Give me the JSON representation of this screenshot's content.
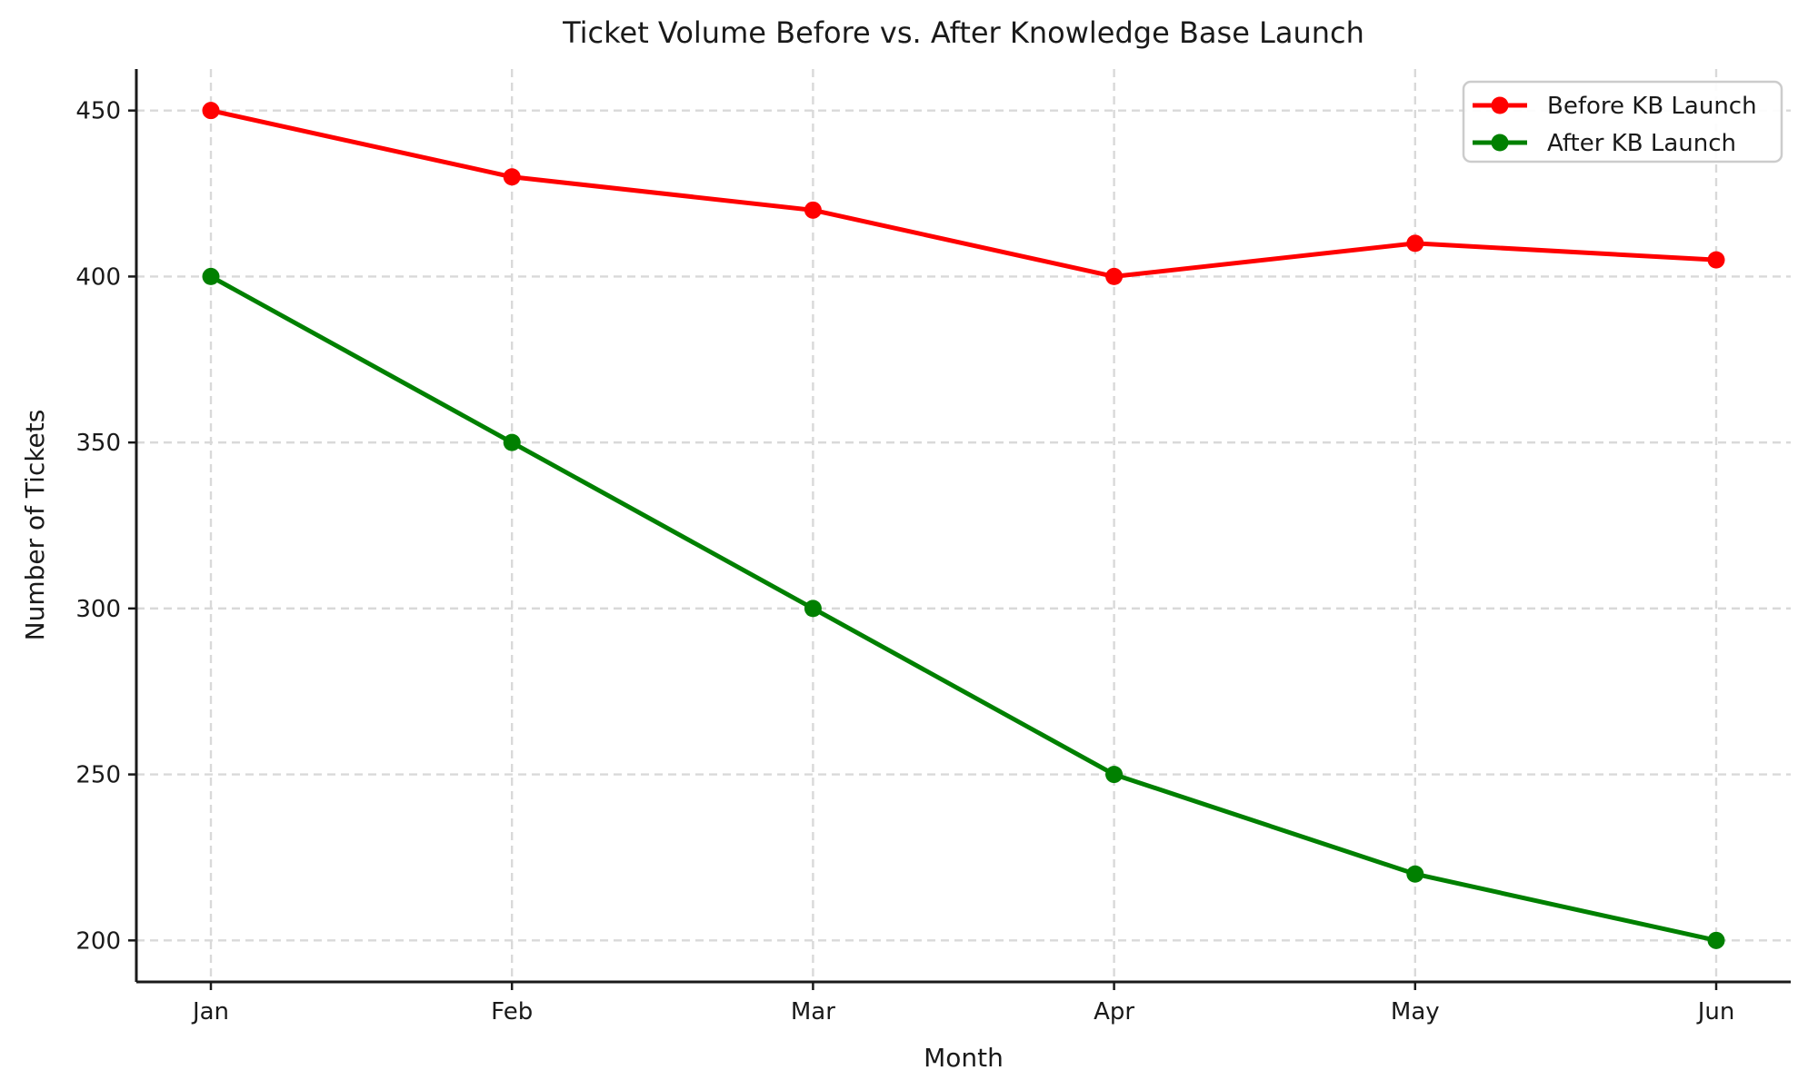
{
  "chart_data": {
    "type": "line",
    "title": "Ticket Volume Before vs. After Knowledge Base Launch",
    "xlabel": "Month",
    "ylabel": "Number of Tickets",
    "categories": [
      "Jan",
      "Feb",
      "Mar",
      "Apr",
      "May",
      "Jun"
    ],
    "series": [
      {
        "name": "Before KB Launch",
        "color": "#ff0000",
        "values": [
          450,
          430,
          420,
          400,
          410,
          405
        ]
      },
      {
        "name": "After KB Launch",
        "color": "#008000",
        "values": [
          400,
          350,
          300,
          250,
          220,
          200
        ]
      }
    ],
    "yticks": [
      200,
      250,
      300,
      350,
      400,
      450
    ],
    "ylim": [
      187.5,
      462.5
    ],
    "grid": {
      "visible": true,
      "style": "dashed",
      "color": "#d9d9d9"
    },
    "legend": {
      "position": "top-right",
      "border_color": "#cccccc",
      "background": "#ffffff"
    },
    "axis_color": "#1a1a1a",
    "text_color": "#1a1a1a",
    "background": "#ffffff"
  }
}
